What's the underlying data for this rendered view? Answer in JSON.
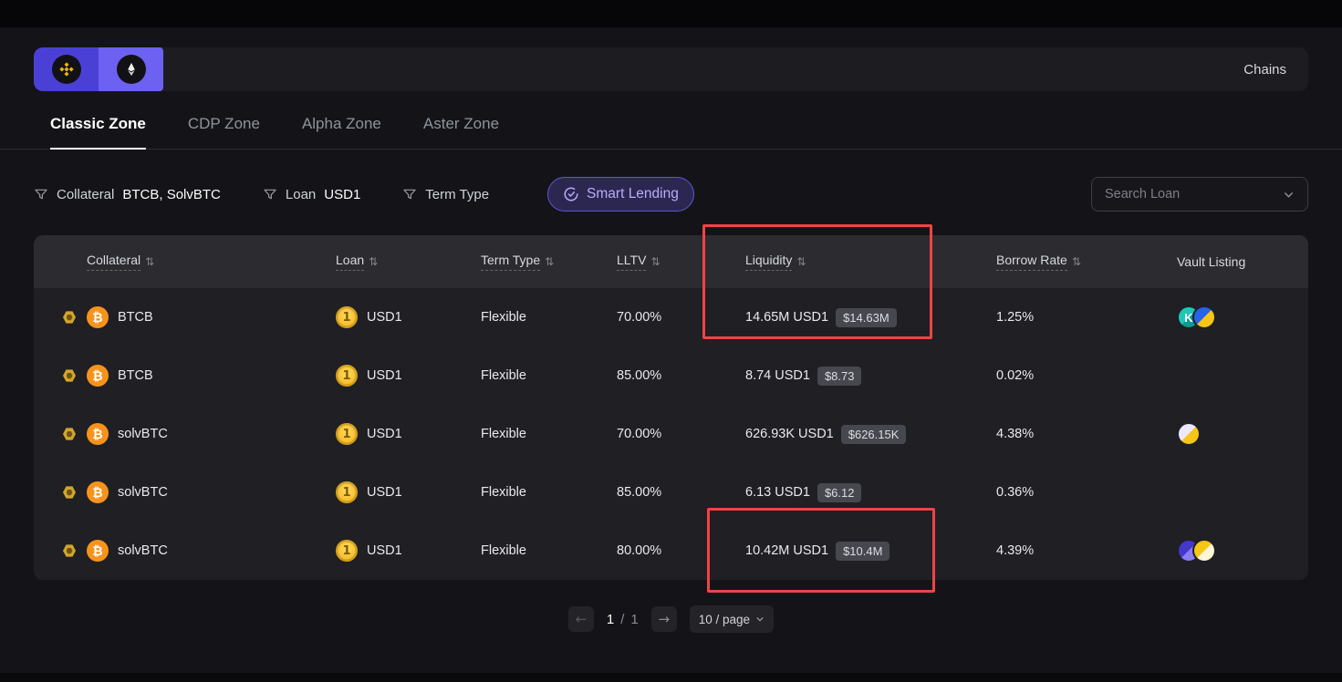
{
  "header": {
    "chains_label": "Chains"
  },
  "tabs": [
    {
      "label": "Classic Zone",
      "active": true
    },
    {
      "label": "CDP Zone",
      "active": false
    },
    {
      "label": "Alpha Zone",
      "active": false
    },
    {
      "label": "Aster Zone",
      "active": false
    }
  ],
  "filters": {
    "collateral": {
      "label": "Collateral",
      "value": "BTCB, SolvBTC"
    },
    "loan": {
      "label": "Loan",
      "value": "USD1"
    },
    "term_type": {
      "label": "Term Type",
      "value": ""
    },
    "smart_lending_label": "Smart Lending",
    "search_placeholder": "Search Loan"
  },
  "table": {
    "headers": {
      "collateral": "Collateral",
      "loan": "Loan",
      "term_type": "Term Type",
      "lltv": "LLTV",
      "liquidity": "Liquidity",
      "borrow_rate": "Borrow Rate",
      "vault_listing": "Vault Listing"
    },
    "rows": [
      {
        "collateral": "BTCB",
        "loan": "USD1",
        "term_type": "Flexible",
        "lltv": "70.00%",
        "liquidity": "14.65M USD1",
        "liquidity_usd": "$14.63M",
        "borrow_rate": "1.25%",
        "vaults": [
          {
            "colors": [
              "#1fc7b7",
              "#0e9c92"
            ],
            "glyph": "K"
          },
          {
            "colors": [
              "#2563eb",
              "#f5c518"
            ],
            "glyph": ""
          }
        ]
      },
      {
        "collateral": "BTCB",
        "loan": "USD1",
        "term_type": "Flexible",
        "lltv": "85.00%",
        "liquidity": "8.74 USD1",
        "liquidity_usd": "$8.73",
        "borrow_rate": "0.02%",
        "vaults": []
      },
      {
        "collateral": "solvBTC",
        "loan": "USD1",
        "term_type": "Flexible",
        "lltv": "70.00%",
        "liquidity": "626.93K USD1",
        "liquidity_usd": "$626.15K",
        "borrow_rate": "4.38%",
        "vaults": [
          {
            "colors": [
              "#ece9fd",
              "#f5c518"
            ],
            "glyph": ""
          }
        ]
      },
      {
        "collateral": "solvBTC",
        "loan": "USD1",
        "term_type": "Flexible",
        "lltv": "85.00%",
        "liquidity": "6.13 USD1",
        "liquidity_usd": "$6.12",
        "borrow_rate": "0.36%",
        "vaults": []
      },
      {
        "collateral": "solvBTC",
        "loan": "USD1",
        "term_type": "Flexible",
        "lltv": "80.00%",
        "liquidity": "10.42M USD1",
        "liquidity_usd": "$10.4M",
        "borrow_rate": "4.39%",
        "vaults": [
          {
            "colors": [
              "#4338ca",
              "#8b7cf7"
            ],
            "glyph": ""
          },
          {
            "colors": [
              "#f5c518",
              "#fdf6d8"
            ],
            "glyph": ""
          }
        ]
      }
    ]
  },
  "pagination": {
    "current": "1",
    "separator": "/",
    "total": "1",
    "page_size": "10 / page"
  },
  "icons": {
    "sort": "⇅",
    "arrow_left": "←",
    "arrow_right": "→"
  },
  "annotations": {
    "color": "#ef4444"
  }
}
